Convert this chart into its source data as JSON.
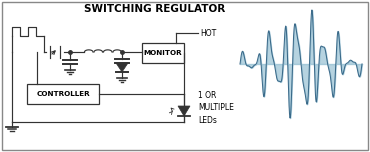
{
  "title": "SWITCHING REGULATOR",
  "title_fontsize": 7.5,
  "background_color": "#ffffff",
  "border_color": "#888888",
  "line_color": "#333333",
  "emi_color_dark": "#2e5f80",
  "emi_color_light": "#7aafc8",
  "text_hot": "HOT",
  "text_monitor": "MONITOR",
  "text_controller": "CONTROLLER",
  "text_leds": "1 OR\nMULTIPLE\nLEDs",
  "fig_width": 3.7,
  "fig_height": 1.52,
  "dpi": 100
}
